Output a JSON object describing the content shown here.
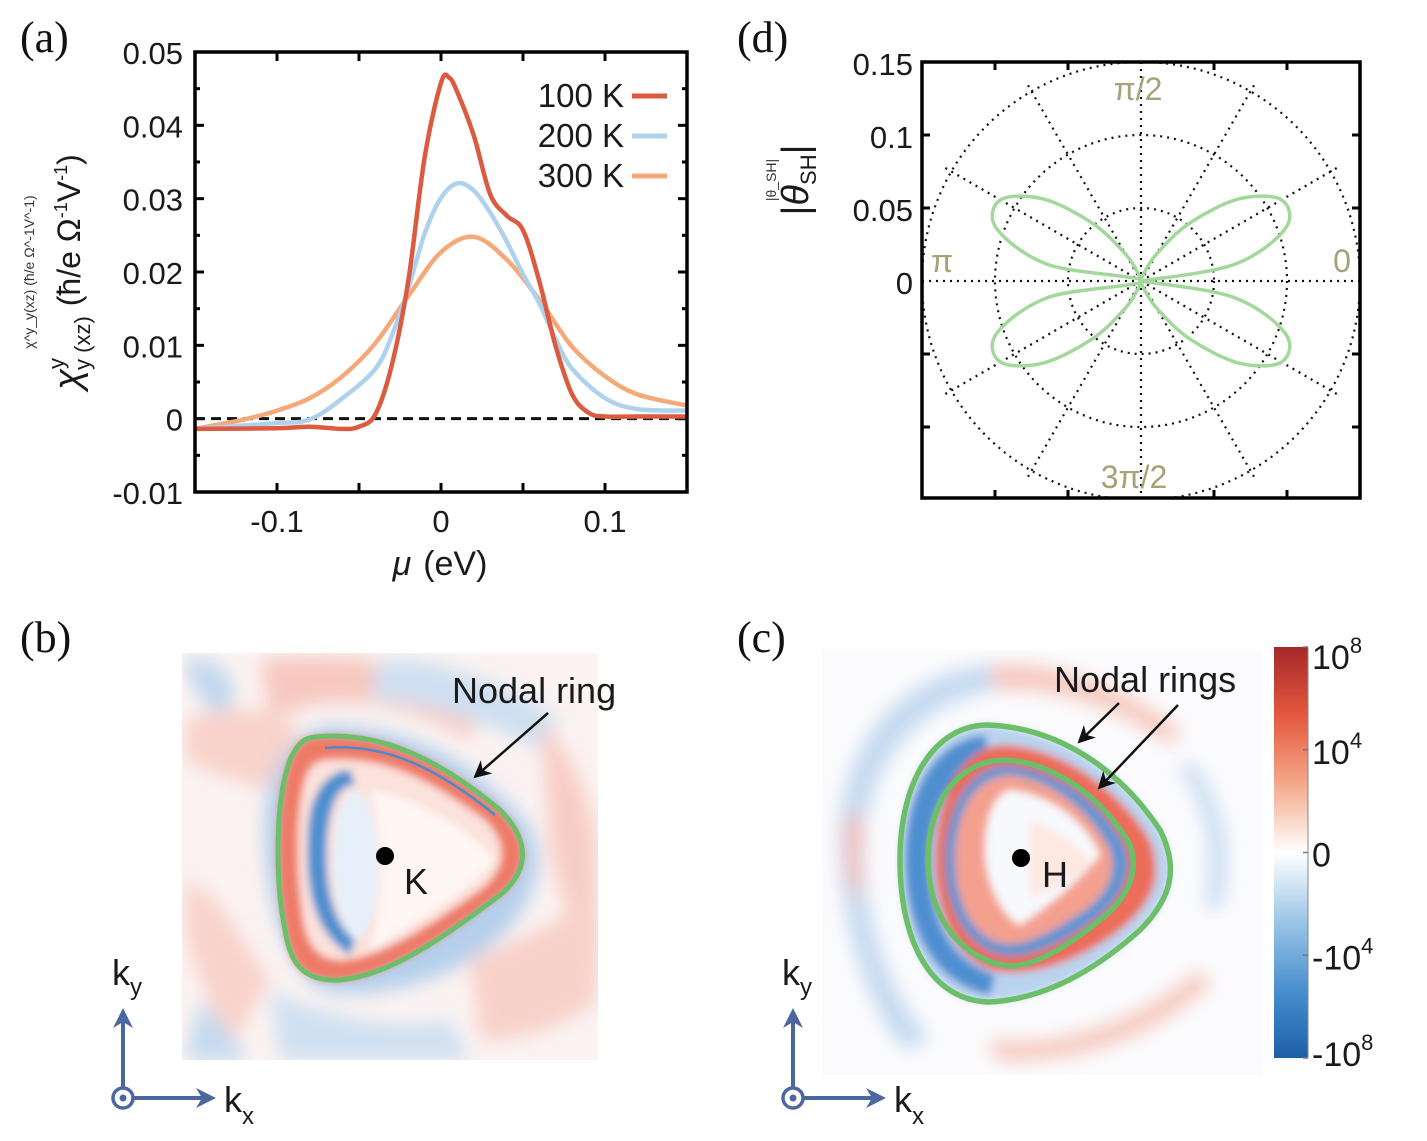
{
  "panel_labels": {
    "a": "(a)",
    "b": "(b)",
    "c": "(c)",
    "d": "(d)"
  },
  "chart_data": [
    {
      "panel": "a",
      "type": "line",
      "xlabel": "μ (eV)",
      "xlabel_symbol": "μ",
      "xlabel_unit": "(eV)",
      "ylabel": "χ^y_y(xz) (ħ/e Ω^-1V^-1)",
      "ylabel_parts": {
        "chi": "χ",
        "sup": "y",
        "sub": "y (xz)",
        "unit_open": "(ħ/e Ω",
        "exp1": "-1",
        "unit_mid": "V",
        "exp2": "-1",
        "unit_close": ")"
      },
      "xlim": [
        -0.15,
        0.15
      ],
      "ylim": [
        -0.01,
        0.05
      ],
      "xticks": [
        -0.1,
        0,
        0.1
      ],
      "xtick_labels": [
        "-0.1",
        "0",
        "0.1"
      ],
      "yticks": [
        -0.01,
        0,
        0.01,
        0.02,
        0.03,
        0.04,
        0.05
      ],
      "ytick_labels": [
        "-0.01",
        "0",
        "0.01",
        "0.02",
        "0.03",
        "0.04",
        "0.05"
      ],
      "reference_line": {
        "y": 0,
        "style": "dashed"
      },
      "legend_position": "top-right",
      "series": [
        {
          "name": "100 K",
          "color": "#dc5a40",
          "x": [
            -0.15,
            -0.1,
            -0.08,
            -0.06,
            -0.05,
            -0.04,
            -0.03,
            -0.02,
            -0.01,
            0,
            0.005,
            0.01,
            0.02,
            0.03,
            0.04,
            0.05,
            0.06,
            0.07,
            0.08,
            0.09,
            0.1,
            0.12,
            0.15
          ],
          "y": [
            -0.0014,
            -0.0013,
            -0.0011,
            -0.0014,
            -0.0011,
            0.0006,
            0.0073,
            0.0187,
            0.0356,
            0.0458,
            0.0465,
            0.0445,
            0.0386,
            0.0306,
            0.0277,
            0.0257,
            0.0187,
            0.0098,
            0.0033,
            0.0008,
            0.0003,
            0.0003,
            0.0003
          ]
        },
        {
          "name": "200 K",
          "color": "#aed1ee",
          "x": [
            -0.15,
            -0.1,
            -0.08,
            -0.06,
            -0.04,
            -0.03,
            -0.02,
            -0.01,
            0,
            0.01,
            0.02,
            0.03,
            0.04,
            0.05,
            0.06,
            0.07,
            0.08,
            0.1,
            0.12,
            0.15
          ],
          "y": [
            -0.0014,
            -0.0006,
            -0.0001,
            0.0028,
            0.0068,
            0.0113,
            0.0177,
            0.0252,
            0.0301,
            0.0321,
            0.0311,
            0.0281,
            0.0242,
            0.0197,
            0.0157,
            0.0108,
            0.0068,
            0.0028,
            0.0013,
            0.0011
          ]
        },
        {
          "name": "300 K",
          "color": "#f5a878",
          "x": [
            -0.15,
            -0.12,
            -0.1,
            -0.08,
            -0.06,
            -0.04,
            -0.02,
            0,
            0.02,
            0.04,
            0.06,
            0.08,
            0.1,
            0.12,
            0.15
          ],
          "y": [
            -0.0014,
            -0.0001,
            0.0011,
            0.0028,
            0.0058,
            0.0103,
            0.0167,
            0.0227,
            0.0248,
            0.0217,
            0.0162,
            0.0098,
            0.0058,
            0.0033,
            0.0018
          ]
        }
      ]
    },
    {
      "panel": "d",
      "type": "line",
      "subtype": "polar",
      "ylabel": "|θ_SH|",
      "ylabel_parts": {
        "bar": "|",
        "theta": "θ",
        "sub": "SH"
      },
      "rlim": [
        0,
        0.15
      ],
      "rticks": [
        0,
        0.05,
        0.1,
        0.15
      ],
      "rtick_labels": [
        "0",
        "0.05",
        "0.1",
        "0.15"
      ],
      "angle_labels": {
        "0": "0",
        "90": "π/2",
        "180": "π",
        "270": "3π/2"
      },
      "angle_label_color": "#a5a277",
      "grid": true,
      "grid_angle_step_deg": 30,
      "series": [
        {
          "color": "#a3d79b",
          "theta_deg": [
            0,
            10,
            20,
            30,
            40,
            50,
            60,
            70,
            80,
            90,
            100,
            110,
            120,
            130,
            140,
            150,
            160,
            170,
            180,
            190,
            200,
            210,
            220,
            230,
            240,
            250,
            260,
            270,
            280,
            290,
            300,
            310,
            320,
            330,
            340,
            350,
            360
          ],
          "r": [
            0,
            0.0645,
            0.1053,
            0.1111,
            0.0874,
            0.0516,
            0.0214,
            0.0051,
            0.0004,
            0,
            0.0004,
            0.0051,
            0.0214,
            0.0516,
            0.0874,
            0.1111,
            0.1053,
            0.0645,
            0,
            0.0645,
            0.1053,
            0.1111,
            0.0874,
            0.0516,
            0.0214,
            0.0051,
            0.0004,
            0,
            0.0004,
            0.0051,
            0.0214,
            0.0516,
            0.0874,
            0.1111,
            0.1053,
            0.0645,
            0
          ]
        }
      ]
    },
    {
      "panel": "b",
      "type": "heatmap",
      "annotation": "Nodal ring",
      "point_label": "K",
      "axes": {
        "ky": "k",
        "ky_sub": "y",
        "kx": "k",
        "kx_sub": "x"
      },
      "ring_color": "#6cbf68"
    },
    {
      "panel": "c",
      "type": "heatmap",
      "annotation": "Nodal rings",
      "point_label": "H",
      "axes": {
        "ky": "k",
        "ky_sub": "y",
        "kx": "k",
        "kx_sub": "x"
      },
      "ring_color": "#6cbf68",
      "colorbar": {
        "colors": [
          "#a5282a",
          "#e4583e",
          "#f4a88a",
          "#ffffff",
          "#9cc6e6",
          "#4a8fcf",
          "#1c5fa8"
        ],
        "labels": [
          {
            "base": "10",
            "exp": "8"
          },
          {
            "base": "10",
            "exp": "4"
          },
          {
            "base": "0",
            "exp": ""
          },
          {
            "base": "-10",
            "exp": "4"
          },
          {
            "base": "-10",
            "exp": "8"
          }
        ]
      }
    }
  ]
}
